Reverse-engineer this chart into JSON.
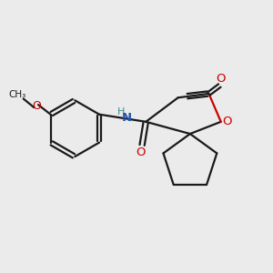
{
  "bg_color": "#ebebeb",
  "bond_color": "#1a1a1a",
  "oxygen_color": "#cc0000",
  "nitrogen_color": "#2255aa",
  "figsize": [
    3.0,
    3.0
  ],
  "dpi": 100,
  "lw": 1.6,
  "xlim": [
    0,
    10
  ],
  "ylim": [
    1,
    9
  ]
}
